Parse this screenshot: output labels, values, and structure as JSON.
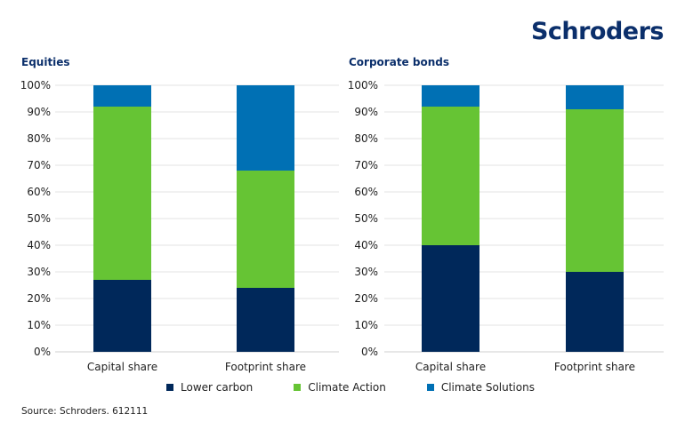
{
  "logo": "Schroders",
  "legend": [
    {
      "name": "Lower carbon",
      "color": "#00285a"
    },
    {
      "name": "Climate Action",
      "color": "#66c434"
    },
    {
      "name": "Climate Solutions",
      "color": "#0070b4"
    }
  ],
  "source": "Source: Schroders. 612111",
  "chart_data": [
    {
      "type": "bar",
      "stacked": true,
      "title": "Equities",
      "categories": [
        "Capital share",
        "Footprint share"
      ],
      "yticks": [
        "0%",
        "10%",
        "20%",
        "30%",
        "40%",
        "50%",
        "60%",
        "70%",
        "80%",
        "90%",
        "100%"
      ],
      "ylim": [
        0,
        100
      ],
      "grid": true,
      "series": [
        {
          "name": "Lower carbon",
          "values": [
            27,
            24
          ]
        },
        {
          "name": "Climate Action",
          "values": [
            65,
            44
          ]
        },
        {
          "name": "Climate Solutions",
          "values": [
            8,
            32
          ]
        }
      ]
    },
    {
      "type": "bar",
      "stacked": true,
      "title": "Corporate bonds",
      "categories": [
        "Capital share",
        "Footprint share"
      ],
      "yticks": [
        "0%",
        "10%",
        "20%",
        "30%",
        "40%",
        "50%",
        "60%",
        "70%",
        "80%",
        "90%",
        "100%"
      ],
      "ylim": [
        0,
        100
      ],
      "grid": true,
      "series": [
        {
          "name": "Lower carbon",
          "values": [
            40,
            30
          ]
        },
        {
          "name": "Climate Action",
          "values": [
            52,
            61
          ]
        },
        {
          "name": "Climate Solutions",
          "values": [
            8,
            9
          ]
        }
      ]
    }
  ]
}
